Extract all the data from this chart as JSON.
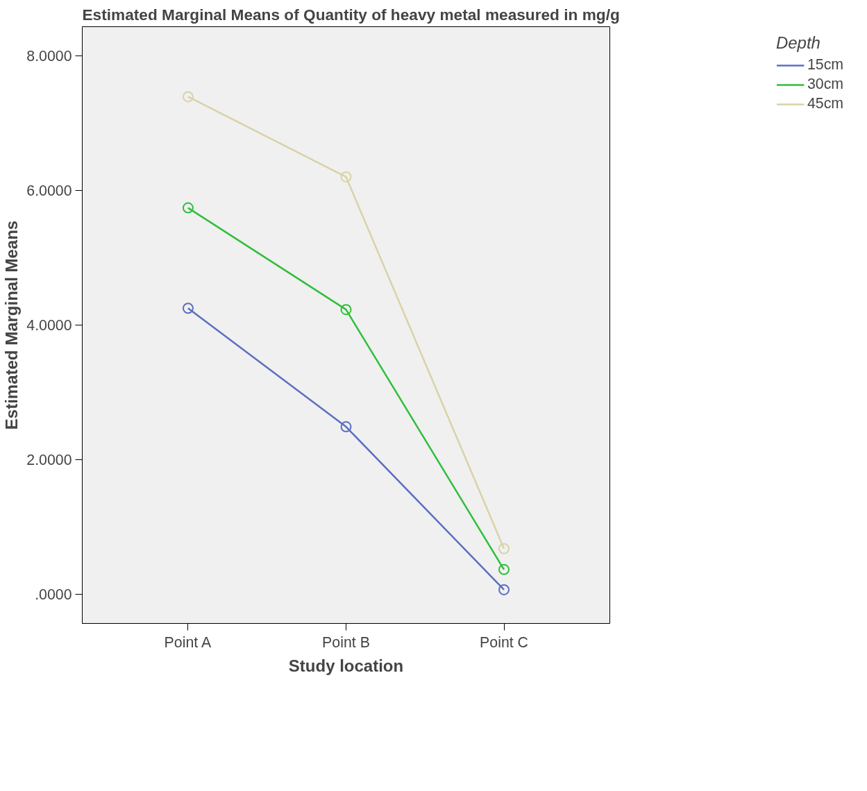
{
  "chart_data": {
    "type": "line",
    "title": "Estimated Marginal Means of Quantity of heavy metal measured in mg/g",
    "xlabel": "Study location",
    "ylabel": "Estimated Marginal Means",
    "legend_title": "Depth",
    "categories": [
      "Point A",
      "Point B",
      "Point C"
    ],
    "series": [
      {
        "name": "15cm",
        "color": "#5a6fc0",
        "values": [
          4.25,
          2.49,
          0.07
        ]
      },
      {
        "name": "30cm",
        "color": "#2fbf3a",
        "values": [
          5.74,
          4.23,
          0.37
        ]
      },
      {
        "name": "45cm",
        "color": "#d9d2a8",
        "values": [
          7.39,
          6.2,
          0.68
        ]
      }
    ],
    "ylim": [
      -0.43,
      8.43
    ],
    "yticks": [
      {
        "value": 0,
        "label": ".0000"
      },
      {
        "value": 2,
        "label": "2.0000"
      },
      {
        "value": 4,
        "label": "4.0000"
      },
      {
        "value": 6,
        "label": "6.0000"
      },
      {
        "value": 8,
        "label": "8.0000"
      }
    ],
    "grid": false,
    "legend": "top right",
    "marker": "circle",
    "line_style": "solid"
  }
}
